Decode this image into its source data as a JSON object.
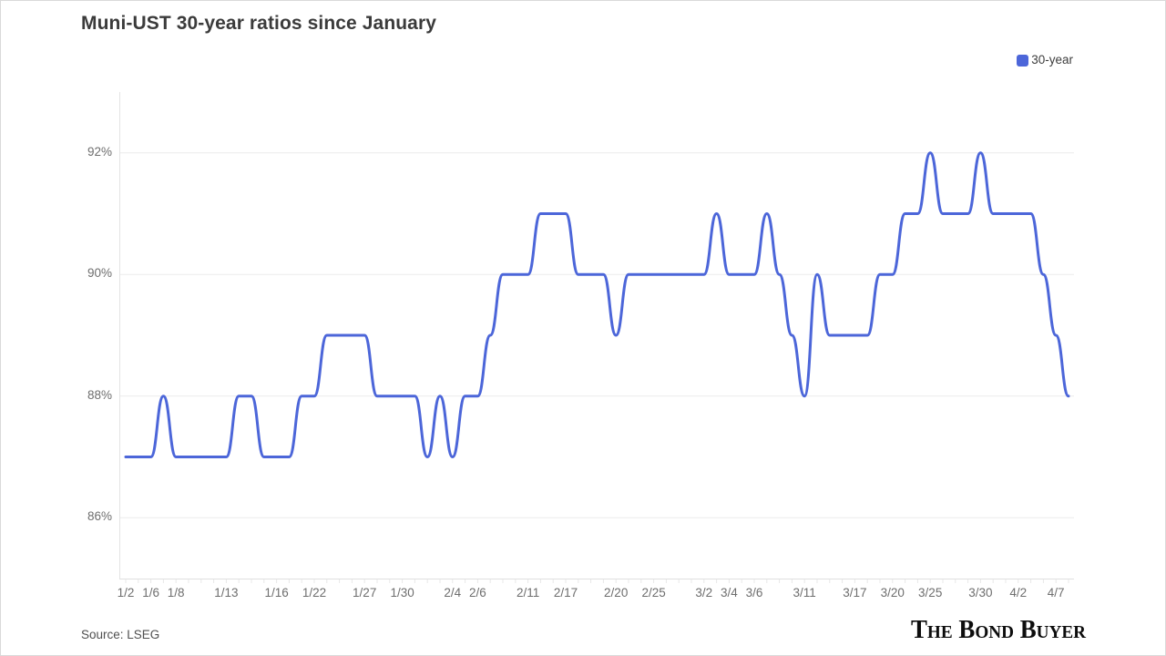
{
  "title": "Muni-UST 30-year ratios since January",
  "legend": {
    "label": "30-year",
    "color": "#4c66d9"
  },
  "source": "Source: LSEG",
  "branding": "The Bond Buyer",
  "chart_data": {
    "type": "line",
    "title": "Muni-UST 30-year ratios since January",
    "xlabel": "",
    "ylabel": "",
    "ylim": [
      85,
      93
    ],
    "y_ticks": [
      86,
      88,
      90,
      92
    ],
    "y_tick_suffix": "%",
    "grid": "horizontal",
    "legend_position": "top-right",
    "line_color": "#4c66d9",
    "grid_color": "#ececec",
    "axis_color": "#e0e0e0",
    "x_tick_labels": [
      {
        "index": 0,
        "label": "1/2"
      },
      {
        "index": 2,
        "label": "1/6"
      },
      {
        "index": 4,
        "label": "1/8"
      },
      {
        "index": 8,
        "label": "1/13"
      },
      {
        "index": 12,
        "label": "1/16"
      },
      {
        "index": 15,
        "label": "1/22"
      },
      {
        "index": 19,
        "label": "1/27"
      },
      {
        "index": 22,
        "label": "1/30"
      },
      {
        "index": 26,
        "label": "2/4"
      },
      {
        "index": 28,
        "label": "2/6"
      },
      {
        "index": 32,
        "label": "2/11"
      },
      {
        "index": 35,
        "label": "2/17"
      },
      {
        "index": 39,
        "label": "2/20"
      },
      {
        "index": 42,
        "label": "2/25"
      },
      {
        "index": 46,
        "label": "3/2"
      },
      {
        "index": 48,
        "label": "3/4"
      },
      {
        "index": 50,
        "label": "3/6"
      },
      {
        "index": 54,
        "label": "3/11"
      },
      {
        "index": 58,
        "label": "3/17"
      },
      {
        "index": 61,
        "label": "3/20"
      },
      {
        "index": 64,
        "label": "3/25"
      },
      {
        "index": 68,
        "label": "3/30"
      },
      {
        "index": 71,
        "label": "4/2"
      },
      {
        "index": 74,
        "label": "4/7"
      }
    ],
    "series": [
      {
        "name": "30-year",
        "color": "#4c66d9",
        "values": [
          87,
          87,
          87,
          88,
          87,
          87,
          87,
          87,
          87,
          88,
          88,
          87,
          87,
          87,
          88,
          88,
          89,
          89,
          89,
          89,
          88,
          88,
          88,
          88,
          87,
          88,
          87,
          88,
          88,
          89,
          90,
          90,
          90,
          91,
          91,
          91,
          90,
          90,
          90,
          89,
          90,
          90,
          90,
          90,
          90,
          90,
          90,
          91,
          90,
          90,
          90,
          91,
          90,
          89,
          88,
          90,
          89,
          89,
          89,
          89,
          90,
          90,
          91,
          91,
          92,
          91,
          91,
          91,
          92,
          91,
          91,
          91,
          91,
          90,
          89,
          88
        ]
      }
    ]
  }
}
